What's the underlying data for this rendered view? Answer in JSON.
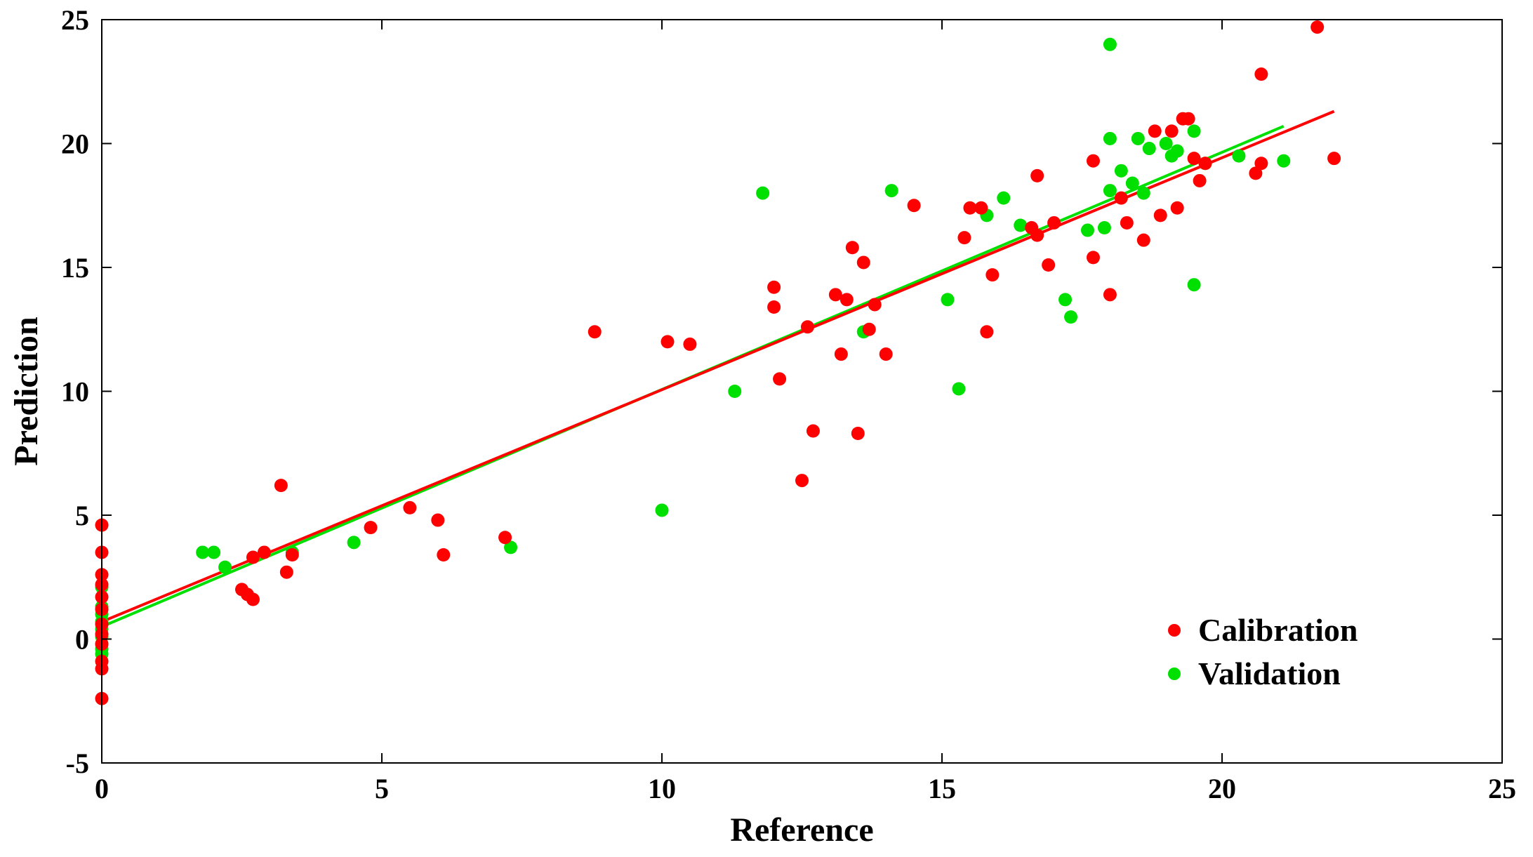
{
  "colors": {
    "calibration": "#ff0000",
    "validation": "#00e000",
    "axis": "#000000",
    "background": "#ffffff"
  },
  "chart_data": {
    "type": "scatter",
    "title": "",
    "xlabel": "Reference",
    "ylabel": "Prediction",
    "xlim": [
      0,
      25
    ],
    "ylim": [
      -5,
      25
    ],
    "xticks": [
      0,
      5,
      10,
      15,
      20,
      25
    ],
    "yticks": [
      -5,
      0,
      5,
      10,
      15,
      20,
      25
    ],
    "xtick_labels": [
      "0",
      "5",
      "10",
      "15",
      "20",
      "25"
    ],
    "ytick_labels": [
      "-5",
      "0",
      "5",
      "10",
      "15",
      "20",
      "25"
    ],
    "grid": false,
    "legend": {
      "placement": "bottom-right",
      "entries": [
        "Calibration",
        "Validation"
      ]
    },
    "series": [
      {
        "name": "Calibration",
        "color": "#ff0000",
        "points": [
          [
            0,
            4.6
          ],
          [
            0,
            3.5
          ],
          [
            0,
            2.6
          ],
          [
            0,
            2.2
          ],
          [
            0,
            1.7
          ],
          [
            0,
            1.2
          ],
          [
            0,
            0.6
          ],
          [
            0,
            0.2
          ],
          [
            0,
            -0.2
          ],
          [
            0,
            -0.9
          ],
          [
            0,
            -1.2
          ],
          [
            0,
            -2.4
          ],
          [
            2.5,
            2.0
          ],
          [
            2.6,
            1.8
          ],
          [
            2.7,
            1.6
          ],
          [
            2.7,
            3.3
          ],
          [
            2.9,
            3.5
          ],
          [
            3.2,
            6.2
          ],
          [
            3.3,
            2.7
          ],
          [
            3.4,
            3.4
          ],
          [
            4.8,
            4.5
          ],
          [
            5.5,
            5.3
          ],
          [
            6.0,
            4.8
          ],
          [
            6.1,
            3.4
          ],
          [
            7.2,
            4.1
          ],
          [
            8.8,
            12.4
          ],
          [
            10.1,
            12.0
          ],
          [
            10.5,
            11.9
          ],
          [
            12.0,
            14.2
          ],
          [
            12.0,
            13.4
          ],
          [
            12.1,
            10.5
          ],
          [
            12.5,
            6.4
          ],
          [
            12.6,
            12.6
          ],
          [
            12.7,
            8.4
          ],
          [
            13.1,
            13.9
          ],
          [
            13.2,
            11.5
          ],
          [
            13.3,
            13.7
          ],
          [
            13.4,
            15.8
          ],
          [
            13.5,
            8.3
          ],
          [
            13.6,
            15.2
          ],
          [
            13.7,
            12.5
          ],
          [
            13.8,
            13.5
          ],
          [
            14.0,
            11.5
          ],
          [
            14.5,
            17.5
          ],
          [
            15.4,
            16.2
          ],
          [
            15.5,
            17.4
          ],
          [
            15.7,
            17.4
          ],
          [
            15.8,
            12.4
          ],
          [
            15.9,
            14.7
          ],
          [
            16.6,
            16.6
          ],
          [
            16.7,
            16.3
          ],
          [
            16.7,
            18.7
          ],
          [
            16.9,
            15.1
          ],
          [
            17.0,
            16.8
          ],
          [
            17.7,
            19.3
          ],
          [
            17.7,
            15.4
          ],
          [
            18.0,
            13.9
          ],
          [
            18.2,
            17.8
          ],
          [
            18.3,
            16.8
          ],
          [
            18.6,
            16.1
          ],
          [
            18.8,
            20.5
          ],
          [
            18.9,
            17.1
          ],
          [
            19.1,
            20.5
          ],
          [
            19.2,
            17.4
          ],
          [
            19.3,
            21.0
          ],
          [
            19.4,
            21.0
          ],
          [
            19.5,
            19.4
          ],
          [
            19.6,
            18.5
          ],
          [
            19.7,
            19.2
          ],
          [
            20.6,
            18.8
          ],
          [
            20.7,
            22.8
          ],
          [
            20.7,
            19.2
          ],
          [
            21.7,
            24.7
          ],
          [
            22.0,
            19.4
          ]
        ],
        "fit_line": {
          "x": [
            0,
            22.0
          ],
          "y": [
            0.7,
            21.3
          ]
        }
      },
      {
        "name": "Validation",
        "color": "#00e000",
        "points": [
          [
            0,
            2.1
          ],
          [
            0,
            1.3
          ],
          [
            0,
            1.0
          ],
          [
            0,
            0.7
          ],
          [
            0,
            0.4
          ],
          [
            0,
            0.1
          ],
          [
            0,
            -0.2
          ],
          [
            0,
            -0.4
          ],
          [
            0,
            -0.6
          ],
          [
            1.8,
            3.5
          ],
          [
            2.0,
            3.5
          ],
          [
            2.2,
            2.9
          ],
          [
            3.4,
            3.5
          ],
          [
            4.5,
            3.9
          ],
          [
            7.3,
            3.7
          ],
          [
            10.0,
            5.2
          ],
          [
            11.3,
            10.0
          ],
          [
            11.8,
            18.0
          ],
          [
            13.6,
            12.4
          ],
          [
            14.1,
            18.1
          ],
          [
            15.1,
            13.7
          ],
          [
            15.3,
            10.1
          ],
          [
            15.8,
            17.1
          ],
          [
            16.1,
            17.8
          ],
          [
            16.4,
            16.7
          ],
          [
            17.2,
            13.7
          ],
          [
            17.3,
            13.0
          ],
          [
            17.6,
            16.5
          ],
          [
            17.9,
            16.6
          ],
          [
            18.0,
            24.0
          ],
          [
            18.0,
            20.2
          ],
          [
            18.0,
            18.1
          ],
          [
            18.2,
            18.9
          ],
          [
            18.4,
            18.4
          ],
          [
            18.5,
            20.2
          ],
          [
            18.6,
            18.0
          ],
          [
            18.7,
            19.8
          ],
          [
            19.0,
            20.0
          ],
          [
            19.1,
            19.5
          ],
          [
            19.2,
            19.7
          ],
          [
            19.5,
            20.5
          ],
          [
            19.5,
            14.3
          ],
          [
            19.7,
            19.2
          ],
          [
            20.3,
            19.5
          ],
          [
            21.1,
            19.3
          ]
        ],
        "fit_line": {
          "x": [
            0,
            21.1
          ],
          "y": [
            0.5,
            20.7
          ]
        }
      }
    ]
  }
}
